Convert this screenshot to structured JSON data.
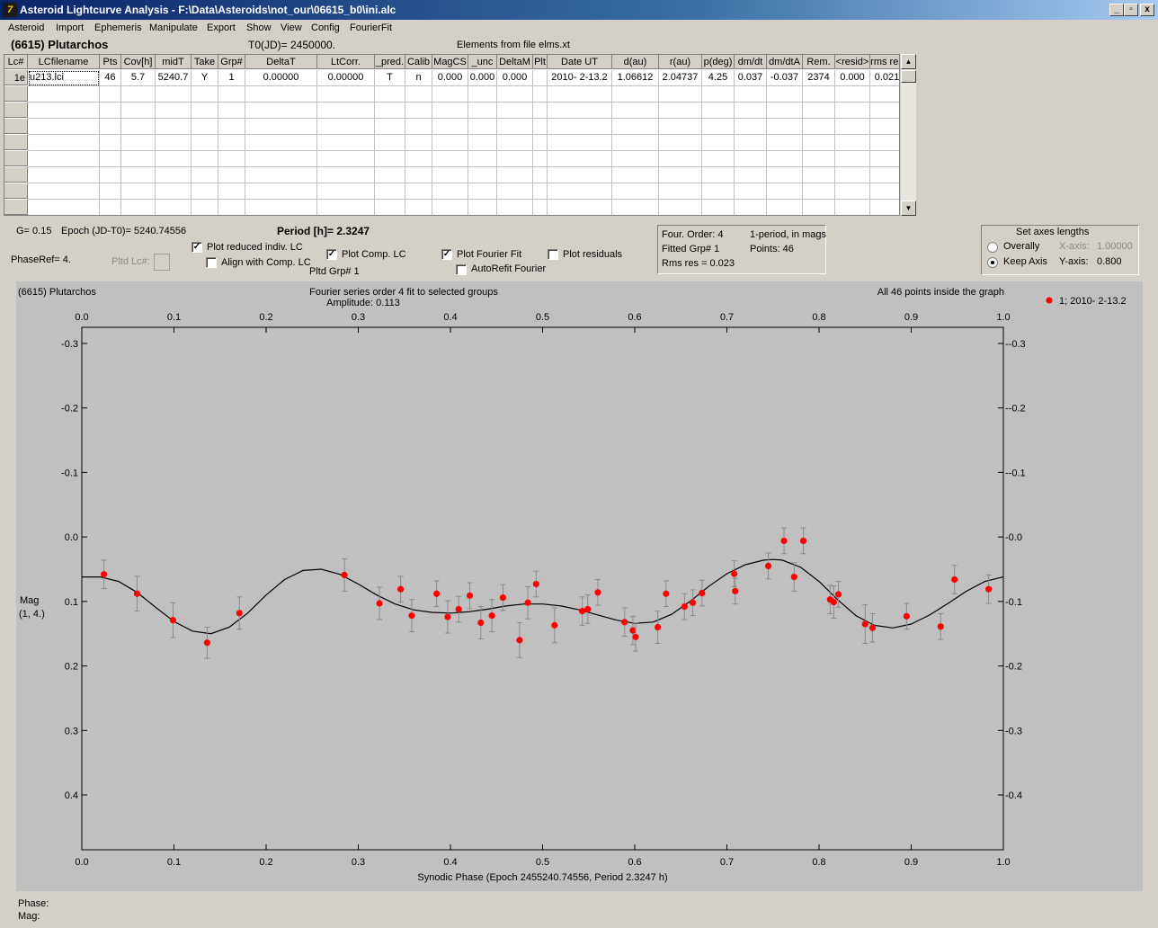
{
  "window": {
    "title": "Asteroid Lightcurve Analysis - F:\\Data\\Asteroids\\not_our\\06615_b0\\ini.alc",
    "app_icon_glyph": "7",
    "min_glyph": "_",
    "restore_glyph": "▫",
    "close_glyph": "x"
  },
  "menu": [
    "Asteroid",
    "Import",
    "Ephemeris",
    "Manipulate",
    "Export",
    "Show",
    "View",
    "Config",
    "FourierFit"
  ],
  "header": {
    "asteroid": "(6615) Plutarchos",
    "t0": "T0(JD)= 2450000.",
    "elements": "Elements from file elms.xt"
  },
  "table": {
    "columns": [
      "Lc#",
      "LCfilename",
      "Pts",
      "Cov[h]",
      "midT",
      "Take",
      "Grp#",
      "DeltaT",
      "LtCorr.",
      "_pred.",
      "Calib",
      "MagCS",
      "_unc",
      "DeltaM",
      "Plt",
      "Date UT",
      "d(au)",
      "r(au)",
      "p(deg)",
      "dm/dt",
      "dm/dtA",
      "Rem.",
      "<resid>",
      "rms res"
    ],
    "rows": [
      [
        "1e",
        "u213.lci",
        "46",
        "5.7",
        "5240.7",
        "Y",
        "1",
        "0.00000",
        "0.00000",
        "T",
        "n",
        "0.000",
        "0.000",
        "0.000",
        "",
        "2010- 2-13.2",
        "1.06612",
        "2.04737",
        "4.25",
        "0.037",
        "-0.037",
        "2374",
        "0.000",
        "0.021"
      ]
    ],
    "scroll_up": "▲",
    "scroll_down": "▼"
  },
  "controls": {
    "g": "G= 0.15",
    "epoch": "Epoch (JD-T0)= 5240.74556",
    "period": "Period [h]= 2.3247",
    "phaseref": "PhaseRef= 4.",
    "pltd_lc": "Pltd Lc#:",
    "plot_reduced": "Plot reduced indiv. LC",
    "align_comp": "Align with Comp. LC",
    "plot_comp": "Plot Comp. LC",
    "pltd_grp": "Pltd Grp#  1",
    "plot_fourier": "Plot Fourier Fit",
    "autorefit": "AutoRefit Fourier",
    "plot_residuals": "Plot residuals",
    "check_mark": "✓",
    "plot_reduced_checked": true,
    "align_comp_checked": false,
    "plot_comp_checked": true,
    "plot_fourier_checked": true,
    "autorefit_checked": false,
    "plot_residuals_checked": false
  },
  "fourier_info": {
    "order": "Four. Order:  4",
    "period_mode": "1-period, in mags",
    "fitted": "Fitted Grp# 1",
    "points": "Points: 46",
    "rms": "Rms res     = 0.023"
  },
  "axes_box": {
    "title": "Set axes lengths",
    "overally": "Overally",
    "keep_axis": "Keep Axis",
    "x_axis_label": "X-axis:",
    "x_axis_value": "1.00000",
    "y_axis_label": "Y-axis:",
    "y_axis_value": "0.800",
    "selected": "Keep Axis"
  },
  "status": {
    "phase": "Phase:",
    "mag": "Mag:"
  },
  "chart_data": {
    "type": "scatter",
    "title_left": "(6615) Plutarchos",
    "title_center": "Fourier series order 4 fit to selected groups",
    "amplitude": "Amplitude: 0.113",
    "note_right": "All 46 points inside the graph",
    "legend": "1; 2010- 2-13.2",
    "xlabel": "Synodic Phase (Epoch 2455240.74556, Period 2.3247 h)",
    "ylabel": "Mag",
    "ylabel2": "(1, 4.)",
    "xlim": [
      0,
      1
    ],
    "ylim": [
      -0.325,
      0.485
    ],
    "y_inverted": true,
    "xticks": [
      "0.0",
      "0.1",
      "0.2",
      "0.3",
      "0.4",
      "0.5",
      "0.6",
      "0.7",
      "0.8",
      "0.9",
      "1.0"
    ],
    "yticks": [
      -0.3,
      -0.2,
      -0.1,
      0.0,
      0.1,
      0.2,
      0.3,
      0.4
    ],
    "ytick_labels": [
      "-0.3",
      "-0.2",
      "-0.1",
      "0.0",
      "0.1",
      "0.2",
      "0.3",
      "0.4"
    ],
    "point_color": "#ff0000",
    "curve_color": "#000000",
    "errorbar_color": "#8a8a8a",
    "points": [
      {
        "x": 0.024,
        "y": 0.058,
        "err": 0.022
      },
      {
        "x": 0.06,
        "y": 0.088,
        "err": 0.027
      },
      {
        "x": 0.099,
        "y": 0.129,
        "err": 0.027
      },
      {
        "x": 0.136,
        "y": 0.164,
        "err": 0.024
      },
      {
        "x": 0.171,
        "y": 0.118,
        "err": 0.025
      },
      {
        "x": 0.285,
        "y": 0.059,
        "err": 0.025
      },
      {
        "x": 0.323,
        "y": 0.103,
        "err": 0.025
      },
      {
        "x": 0.346,
        "y": 0.081,
        "err": 0.02
      },
      {
        "x": 0.358,
        "y": 0.122,
        "err": 0.025
      },
      {
        "x": 0.385,
        "y": 0.088,
        "err": 0.02
      },
      {
        "x": 0.397,
        "y": 0.124,
        "err": 0.025
      },
      {
        "x": 0.409,
        "y": 0.112,
        "err": 0.02
      },
      {
        "x": 0.421,
        "y": 0.091,
        "err": 0.02
      },
      {
        "x": 0.433,
        "y": 0.133,
        "err": 0.025
      },
      {
        "x": 0.445,
        "y": 0.122,
        "err": 0.025
      },
      {
        "x": 0.457,
        "y": 0.094,
        "err": 0.02
      },
      {
        "x": 0.475,
        "y": 0.16,
        "err": 0.027
      },
      {
        "x": 0.484,
        "y": 0.102,
        "err": 0.025
      },
      {
        "x": 0.493,
        "y": 0.073,
        "err": 0.02
      },
      {
        "x": 0.513,
        "y": 0.137,
        "err": 0.027
      },
      {
        "x": 0.543,
        "y": 0.115,
        "err": 0.022
      },
      {
        "x": 0.549,
        "y": 0.112,
        "err": 0.022
      },
      {
        "x": 0.56,
        "y": 0.086,
        "err": 0.02
      },
      {
        "x": 0.589,
        "y": 0.132,
        "err": 0.022
      },
      {
        "x": 0.598,
        "y": 0.145,
        "err": 0.022
      },
      {
        "x": 0.601,
        "y": 0.155,
        "err": 0.022
      },
      {
        "x": 0.625,
        "y": 0.14,
        "err": 0.025
      },
      {
        "x": 0.634,
        "y": 0.088,
        "err": 0.02
      },
      {
        "x": 0.654,
        "y": 0.108,
        "err": 0.02
      },
      {
        "x": 0.663,
        "y": 0.102,
        "err": 0.02
      },
      {
        "x": 0.673,
        "y": 0.087,
        "err": 0.02
      },
      {
        "x": 0.708,
        "y": 0.057,
        "err": 0.02
      },
      {
        "x": 0.709,
        "y": 0.084,
        "err": 0.02
      },
      {
        "x": 0.745,
        "y": 0.045,
        "err": 0.02
      },
      {
        "x": 0.762,
        "y": 0.006,
        "err": 0.02
      },
      {
        "x": 0.773,
        "y": 0.062,
        "err": 0.022
      },
      {
        "x": 0.783,
        "y": 0.006,
        "err": 0.02
      },
      {
        "x": 0.812,
        "y": 0.097,
        "err": 0.022
      },
      {
        "x": 0.816,
        "y": 0.101,
        "err": 0.025
      },
      {
        "x": 0.821,
        "y": 0.089,
        "err": 0.02
      },
      {
        "x": 0.85,
        "y": 0.135,
        "err": 0.03
      },
      {
        "x": 0.858,
        "y": 0.141,
        "err": 0.022
      },
      {
        "x": 0.895,
        "y": 0.123,
        "err": 0.02
      },
      {
        "x": 0.932,
        "y": 0.139,
        "err": 0.02
      },
      {
        "x": 0.947,
        "y": 0.066,
        "err": 0.022
      },
      {
        "x": 0.984,
        "y": 0.081,
        "err": 0.022
      }
    ],
    "fit_curve": [
      [
        0.0,
        0.062
      ],
      [
        0.02,
        0.062
      ],
      [
        0.04,
        0.069
      ],
      [
        0.06,
        0.086
      ],
      [
        0.08,
        0.109
      ],
      [
        0.1,
        0.131
      ],
      [
        0.12,
        0.146
      ],
      [
        0.14,
        0.15
      ],
      [
        0.16,
        0.14
      ],
      [
        0.18,
        0.118
      ],
      [
        0.2,
        0.09
      ],
      [
        0.22,
        0.066
      ],
      [
        0.24,
        0.052
      ],
      [
        0.26,
        0.05
      ],
      [
        0.28,
        0.058
      ],
      [
        0.3,
        0.073
      ],
      [
        0.32,
        0.09
      ],
      [
        0.34,
        0.104
      ],
      [
        0.36,
        0.113
      ],
      [
        0.38,
        0.117
      ],
      [
        0.4,
        0.118
      ],
      [
        0.42,
        0.116
      ],
      [
        0.44,
        0.112
      ],
      [
        0.46,
        0.107
      ],
      [
        0.48,
        0.104
      ],
      [
        0.5,
        0.104
      ],
      [
        0.52,
        0.107
      ],
      [
        0.54,
        0.113
      ],
      [
        0.56,
        0.121
      ],
      [
        0.58,
        0.129
      ],
      [
        0.6,
        0.134
      ],
      [
        0.62,
        0.132
      ],
      [
        0.64,
        0.12
      ],
      [
        0.66,
        0.1
      ],
      [
        0.68,
        0.077
      ],
      [
        0.7,
        0.057
      ],
      [
        0.72,
        0.043
      ],
      [
        0.74,
        0.036
      ],
      [
        0.75,
        0.035
      ],
      [
        0.76,
        0.036
      ],
      [
        0.78,
        0.047
      ],
      [
        0.8,
        0.069
      ],
      [
        0.82,
        0.097
      ],
      [
        0.84,
        0.122
      ],
      [
        0.86,
        0.137
      ],
      [
        0.88,
        0.141
      ],
      [
        0.9,
        0.135
      ],
      [
        0.92,
        0.121
      ],
      [
        0.94,
        0.103
      ],
      [
        0.96,
        0.084
      ],
      [
        0.98,
        0.069
      ],
      [
        1.0,
        0.062
      ]
    ]
  }
}
